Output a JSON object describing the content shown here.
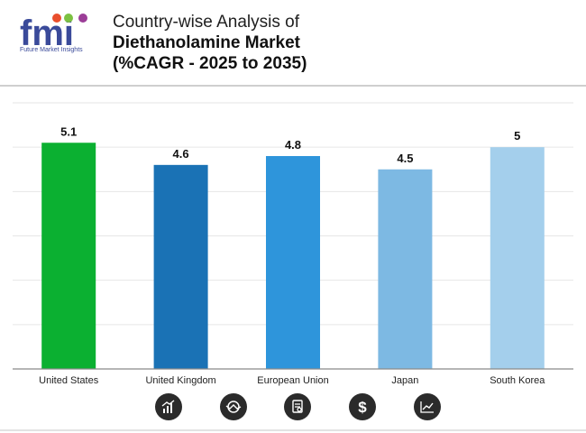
{
  "header": {
    "logo_text": "fmi",
    "logo_subtitle": "Future Market Insights",
    "title_line1": "Country-wise Analysis of",
    "title_line2": "Diethanolamine Market",
    "title_line3": "(%CAGR - 2025 to 2035)"
  },
  "chart_data": {
    "type": "bar",
    "title": "Country-wise Analysis of Diethanolamine Market (%CAGR - 2025 to 2035)",
    "categories": [
      "United States",
      "United Kingdom",
      "European Union",
      "Japan",
      "South Korea"
    ],
    "values": [
      5.1,
      4.6,
      4.8,
      4.5,
      5
    ],
    "value_labels": [
      "5.1",
      "4.6",
      "4.8",
      "4.5",
      "5"
    ],
    "colors": [
      "#0bb031",
      "#1a72b5",
      "#2e95db",
      "#7db9e3",
      "#a4cfec"
    ],
    "xlabel": "",
    "ylabel": "",
    "ylim": [
      0,
      6
    ],
    "grid": true,
    "legend": "none"
  },
  "footer_icons": [
    "bar-chart-icon",
    "chart-analysis-icon",
    "document-search-icon",
    "dollar-icon",
    "line-chart-icon"
  ]
}
